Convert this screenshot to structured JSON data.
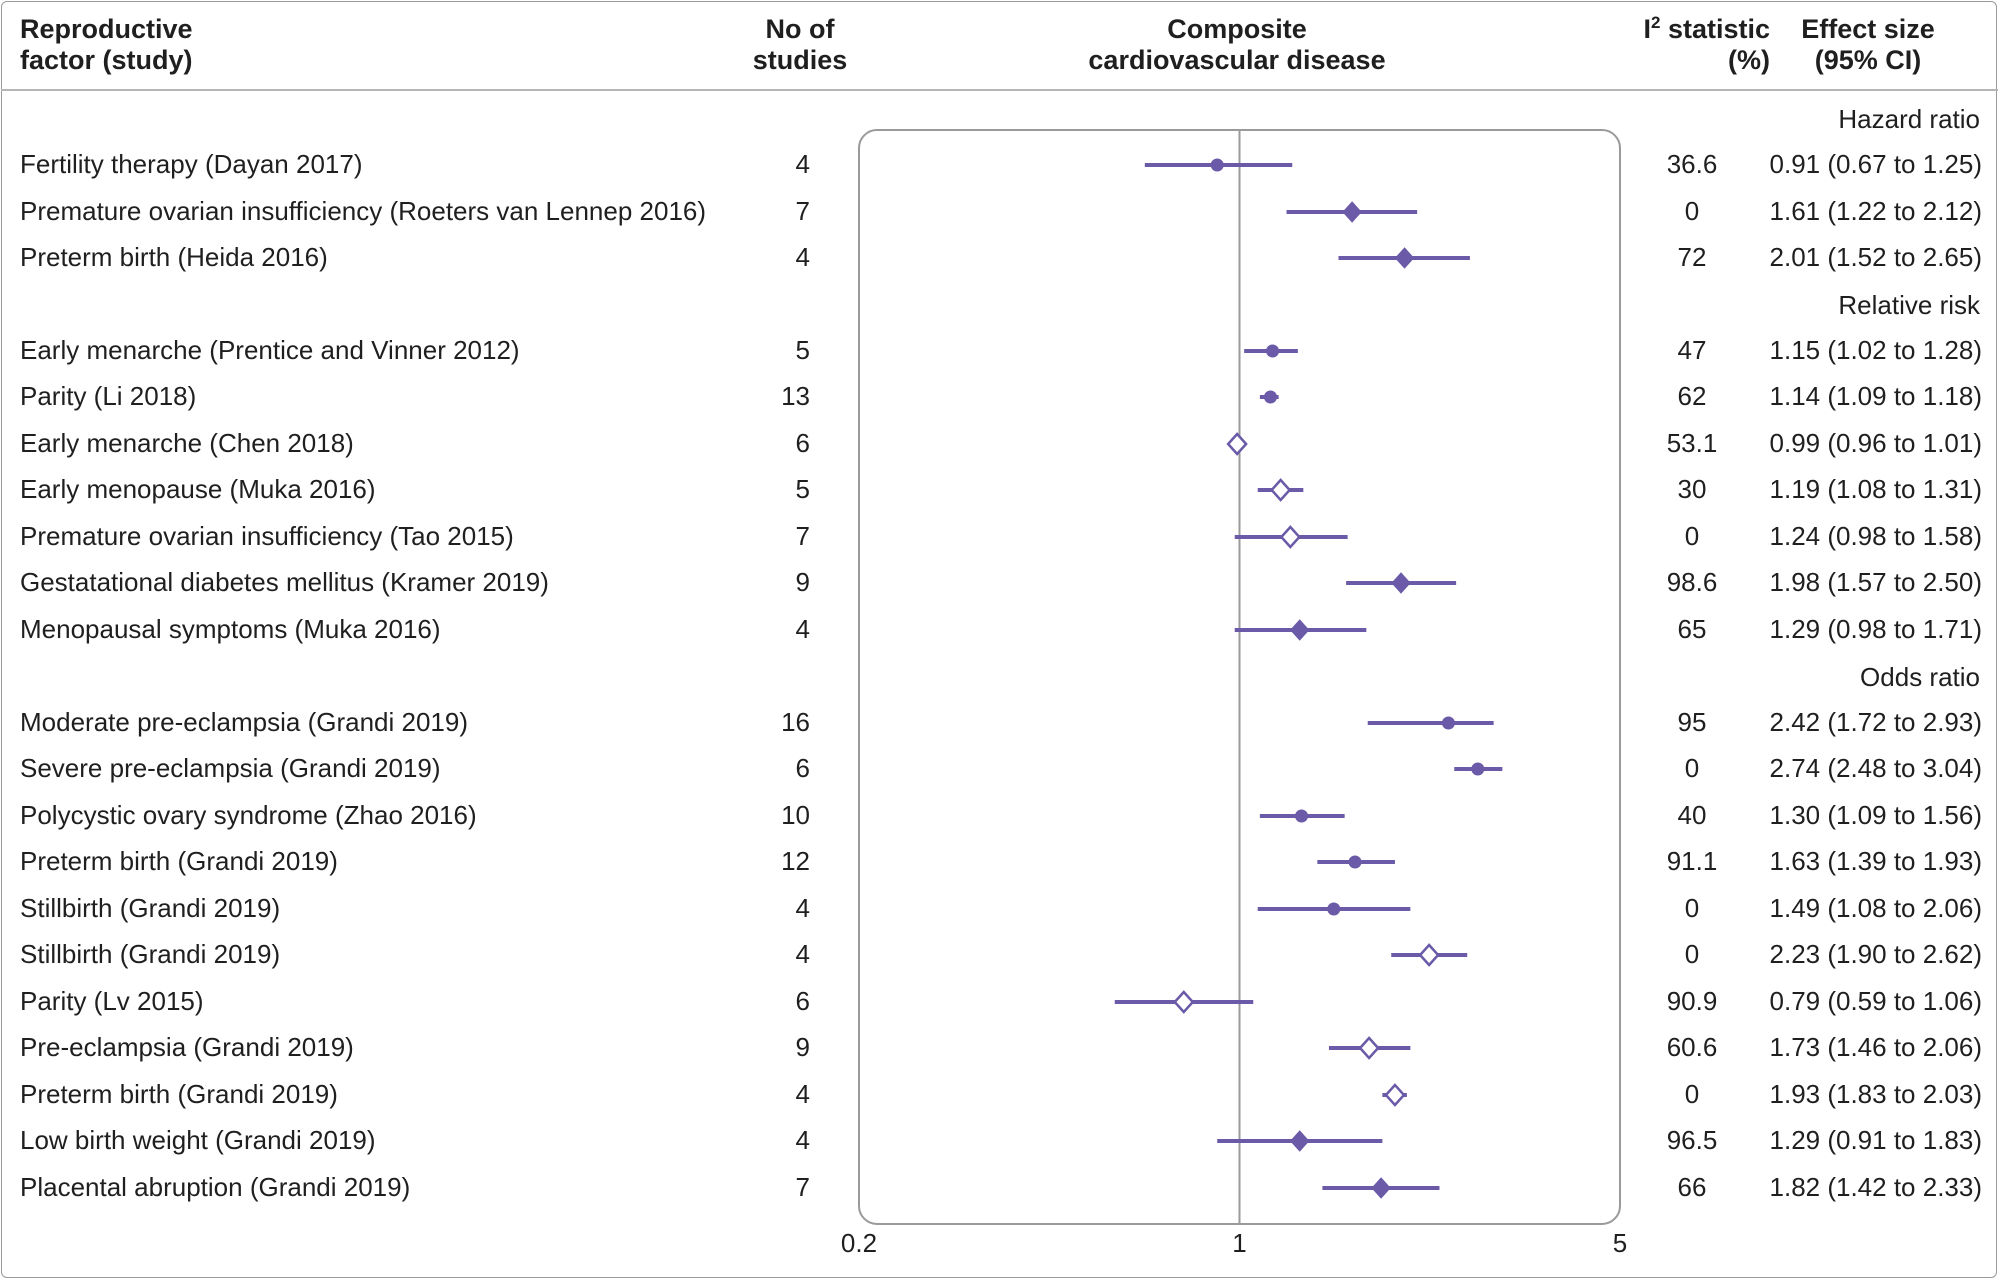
{
  "headers": {
    "study": "Reproductive\nfactor (study)",
    "n_studies": "No of\nstudies",
    "plot": "Composite\ncardiovascular disease",
    "i2_main": "I",
    "i2_sup": "2",
    "i2_rest": " statistic\n(%)",
    "effect": "Effect size\n(95% CI)"
  },
  "colors": {
    "accent": "#6a5aa8",
    "axis": "#9a9a9a",
    "text": "#1f1f1f"
  },
  "groups": [
    {
      "label": "Hazard ratio"
    },
    {
      "label": "Relative risk"
    },
    {
      "label": "Odds ratio"
    }
  ],
  "rows": [
    {
      "study": "Fertility therapy (Dayan 2017)",
      "n": "4",
      "i2": "36.6",
      "effect": "0.91 (0.67 to 1.25)"
    },
    {
      "study": "Premature ovarian insufficiency (Roeters van Lennep 2016)",
      "n": "7",
      "i2": "0",
      "effect": "1.61 (1.22 to 2.12)"
    },
    {
      "study": "Preterm birth (Heida 2016)",
      "n": "4",
      "i2": "72",
      "effect": "2.01 (1.52 to 2.65)"
    },
    {
      "study": "Early menarche (Prentice and Vinner 2012)",
      "n": "5",
      "i2": "47",
      "effect": "1.15 (1.02 to 1.28)"
    },
    {
      "study": "Parity (Li 2018)",
      "n": "13",
      "i2": "62",
      "effect": "1.14 (1.09 to 1.18)"
    },
    {
      "study": "Early menarche (Chen 2018)",
      "n": "6",
      "i2": "53.1",
      "effect": "0.99 (0.96 to 1.01)"
    },
    {
      "study": "Early menopause (Muka 2016)",
      "n": "5",
      "i2": "30",
      "effect": "1.19 (1.08 to 1.31)"
    },
    {
      "study": "Premature ovarian insufficiency (Tao 2015)",
      "n": "7",
      "i2": "0",
      "effect": "1.24 (0.98 to 1.58)"
    },
    {
      "study": "Gestatational diabetes mellitus (Kramer 2019)",
      "n": "9",
      "i2": "98.6",
      "effect": "1.98 (1.57 to 2.50)"
    },
    {
      "study": "Menopausal symptoms (Muka 2016)",
      "n": "4",
      "i2": "65",
      "effect": "1.29 (0.98 to 1.71)"
    },
    {
      "study": "Moderate pre-eclampsia (Grandi 2019)",
      "n": "16",
      "i2": "95",
      "effect": "2.42 (1.72 to 2.93)"
    },
    {
      "study": "Severe pre-eclampsia (Grandi 2019)",
      "n": "6",
      "i2": "0",
      "effect": "2.74 (2.48 to 3.04)"
    },
    {
      "study": "Polycystic ovary syndrome (Zhao 2016)",
      "n": "10",
      "i2": "40",
      "effect": "1.30 (1.09 to 1.56)"
    },
    {
      "study": "Preterm birth (Grandi 2019)",
      "n": "12",
      "i2": "91.1",
      "effect": "1.63 (1.39 to 1.93)"
    },
    {
      "study": "Stillbirth (Grandi 2019)",
      "n": "4",
      "i2": "0",
      "effect": "1.49 (1.08 to 2.06)"
    },
    {
      "study": "Stillbirth (Grandi 2019)",
      "n": "4",
      "i2": "0",
      "effect": "2.23 (1.90 to 2.62)"
    },
    {
      "study": "Parity (Lv 2015)",
      "n": "6",
      "i2": "90.9",
      "effect": "0.79 (0.59 to 1.06)"
    },
    {
      "study": "Pre-eclampsia (Grandi 2019)",
      "n": "9",
      "i2": "60.6",
      "effect": "1.73 (1.46 to 2.06)"
    },
    {
      "study": "Preterm birth (Grandi 2019)",
      "n": "4",
      "i2": "0",
      "effect": "1.93 (1.83 to 2.03)"
    },
    {
      "study": "Low birth weight (Grandi 2019)",
      "n": "4",
      "i2": "96.5",
      "effect": "1.29 (0.91 to 1.83)"
    },
    {
      "study": "Placental abruption (Grandi 2019)",
      "n": "7",
      "i2": "66",
      "effect": "1.82 (1.42 to 2.33)"
    }
  ],
  "chart_data": {
    "type": "forest",
    "xscale": "log",
    "xlim": [
      0.2,
      5
    ],
    "xticks": [
      "0.2",
      "1",
      "5"
    ],
    "reference_line": 1,
    "series": [
      {
        "group": "Hazard ratio",
        "estimate": 0.91,
        "lower": 0.67,
        "upper": 1.25,
        "marker": "circle"
      },
      {
        "group": "Hazard ratio",
        "estimate": 1.61,
        "lower": 1.22,
        "upper": 2.12,
        "marker": "diamond-filled"
      },
      {
        "group": "Hazard ratio",
        "estimate": 2.01,
        "lower": 1.52,
        "upper": 2.65,
        "marker": "diamond-filled"
      },
      {
        "group": "Relative risk",
        "estimate": 1.15,
        "lower": 1.02,
        "upper": 1.28,
        "marker": "circle"
      },
      {
        "group": "Relative risk",
        "estimate": 1.14,
        "lower": 1.09,
        "upper": 1.18,
        "marker": "circle"
      },
      {
        "group": "Relative risk",
        "estimate": 0.99,
        "lower": 0.96,
        "upper": 1.01,
        "marker": "diamond-open"
      },
      {
        "group": "Relative risk",
        "estimate": 1.19,
        "lower": 1.08,
        "upper": 1.31,
        "marker": "diamond-open"
      },
      {
        "group": "Relative risk",
        "estimate": 1.24,
        "lower": 0.98,
        "upper": 1.58,
        "marker": "diamond-open"
      },
      {
        "group": "Relative risk",
        "estimate": 1.98,
        "lower": 1.57,
        "upper": 2.5,
        "marker": "diamond-filled"
      },
      {
        "group": "Relative risk",
        "estimate": 1.29,
        "lower": 0.98,
        "upper": 1.71,
        "marker": "diamond-filled"
      },
      {
        "group": "Odds ratio",
        "estimate": 2.42,
        "lower": 1.72,
        "upper": 2.93,
        "marker": "circle"
      },
      {
        "group": "Odds ratio",
        "estimate": 2.74,
        "lower": 2.48,
        "upper": 3.04,
        "marker": "circle"
      },
      {
        "group": "Odds ratio",
        "estimate": 1.3,
        "lower": 1.09,
        "upper": 1.56,
        "marker": "circle"
      },
      {
        "group": "Odds ratio",
        "estimate": 1.63,
        "lower": 1.39,
        "upper": 1.93,
        "marker": "circle"
      },
      {
        "group": "Odds ratio",
        "estimate": 1.49,
        "lower": 1.08,
        "upper": 2.06,
        "marker": "circle"
      },
      {
        "group": "Odds ratio",
        "estimate": 2.23,
        "lower": 1.9,
        "upper": 2.62,
        "marker": "diamond-open"
      },
      {
        "group": "Odds ratio",
        "estimate": 0.79,
        "lower": 0.59,
        "upper": 1.06,
        "marker": "diamond-open"
      },
      {
        "group": "Odds ratio",
        "estimate": 1.73,
        "lower": 1.46,
        "upper": 2.06,
        "marker": "diamond-open"
      },
      {
        "group": "Odds ratio",
        "estimate": 1.93,
        "lower": 1.83,
        "upper": 2.03,
        "marker": "diamond-open"
      },
      {
        "group": "Odds ratio",
        "estimate": 1.29,
        "lower": 0.91,
        "upper": 1.83,
        "marker": "diamond-filled"
      },
      {
        "group": "Odds ratio",
        "estimate": 1.82,
        "lower": 1.42,
        "upper": 2.33,
        "marker": "diamond-filled"
      }
    ]
  }
}
